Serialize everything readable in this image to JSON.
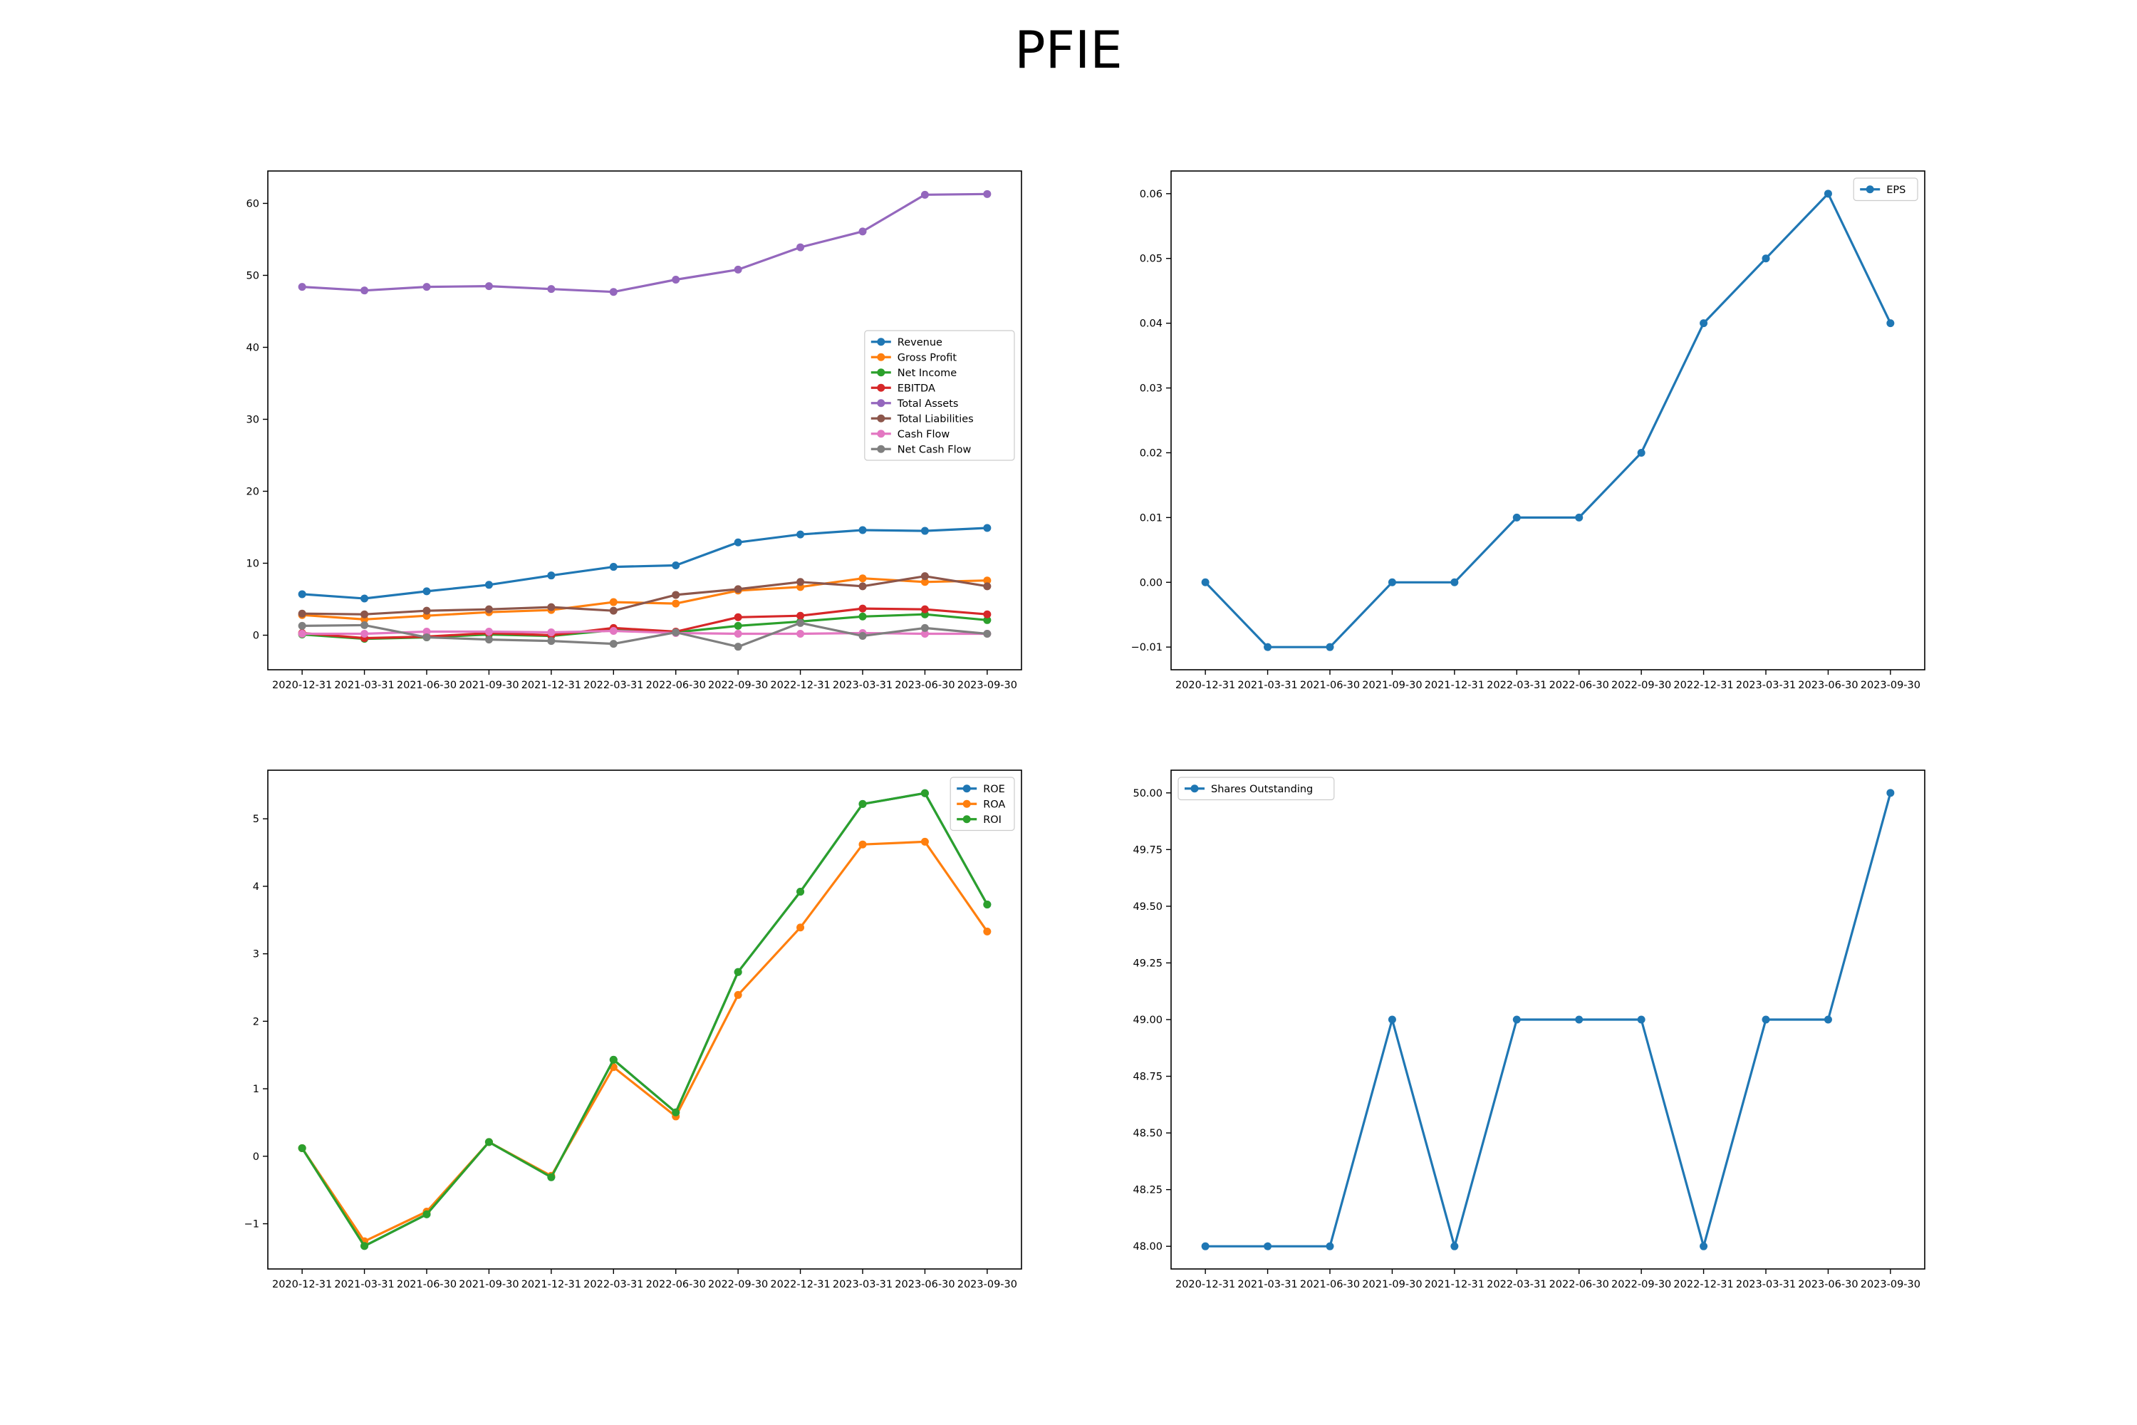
{
  "title": "PFIE",
  "colors": {
    "c0": "#1f77b4",
    "c1": "#ff7f0e",
    "c2": "#2ca02c",
    "c3": "#d62728",
    "c4": "#9467bd",
    "c5": "#8c564b",
    "c6": "#e377c2",
    "c7": "#7f7f7f"
  },
  "chart_data": [
    {
      "type": "line",
      "title": "",
      "xlabel": "",
      "ylabel": "",
      "x": [
        "2020-12-31",
        "2021-03-31",
        "2021-06-30",
        "2021-09-30",
        "2021-12-31",
        "2022-03-31",
        "2022-06-30",
        "2022-09-30",
        "2022-12-31",
        "2023-03-31",
        "2023-06-30",
        "2023-09-30"
      ],
      "ylim": [
        -4.8,
        64.5
      ],
      "yticks": [
        0,
        10,
        20,
        30,
        40,
        50,
        60
      ],
      "grid": false,
      "legend": "center-right",
      "series": [
        {
          "name": "Revenue",
          "color": "#1f77b4",
          "values": [
            5.7,
            5.1,
            6.1,
            7.0,
            8.3,
            9.5,
            9.7,
            12.9,
            14.0,
            14.6,
            14.5,
            14.9
          ]
        },
        {
          "name": "Gross Profit",
          "color": "#ff7f0e",
          "values": [
            2.8,
            2.2,
            2.7,
            3.2,
            3.5,
            4.6,
            4.4,
            6.2,
            6.7,
            7.9,
            7.4,
            7.6
          ]
        },
        {
          "name": "Net Income",
          "color": "#2ca02c",
          "values": [
            0.1,
            -0.5,
            -0.3,
            0.1,
            -0.1,
            0.7,
            0.4,
            1.3,
            1.9,
            2.6,
            2.9,
            2.1
          ]
        },
        {
          "name": "EBITDA",
          "color": "#d62728",
          "values": [
            0.3,
            -0.4,
            -0.2,
            0.3,
            0.0,
            1.0,
            0.5,
            2.5,
            2.7,
            3.7,
            3.6,
            2.9
          ]
        },
        {
          "name": "Total Assets",
          "color": "#9467bd",
          "values": [
            48.4,
            47.9,
            48.4,
            48.5,
            48.1,
            47.7,
            49.4,
            50.8,
            53.9,
            56.1,
            61.2,
            61.3
          ]
        },
        {
          "name": "Total Liabilities",
          "color": "#8c564b",
          "values": [
            3.0,
            2.9,
            3.4,
            3.6,
            3.9,
            3.4,
            5.6,
            6.4,
            7.4,
            6.8,
            8.2,
            6.8
          ]
        },
        {
          "name": "Cash Flow",
          "color": "#e377c2",
          "values": [
            0.2,
            0.2,
            0.5,
            0.5,
            0.4,
            0.6,
            0.3,
            0.2,
            0.2,
            0.3,
            0.2,
            0.2
          ]
        },
        {
          "name": "Net Cash Flow",
          "color": "#7f7f7f",
          "values": [
            1.3,
            1.4,
            -0.3,
            -0.6,
            -0.8,
            -1.2,
            0.4,
            -1.6,
            1.7,
            -0.1,
            1.0,
            0.2
          ]
        }
      ]
    },
    {
      "type": "line",
      "title": "",
      "xlabel": "",
      "ylabel": "",
      "x": [
        "2020-12-31",
        "2021-03-31",
        "2021-06-30",
        "2021-09-30",
        "2021-12-31",
        "2022-03-31",
        "2022-06-30",
        "2022-09-30",
        "2022-12-31",
        "2023-03-31",
        "2023-06-30",
        "2023-09-30"
      ],
      "ylim": [
        -0.0135,
        0.0635
      ],
      "yticks": [
        -0.01,
        0.0,
        0.01,
        0.02,
        0.03,
        0.04,
        0.05,
        0.06
      ],
      "ytick_labels": [
        "−0.01",
        "0.00",
        "0.01",
        "0.02",
        "0.03",
        "0.04",
        "0.05",
        "0.06"
      ],
      "grid": false,
      "legend": "top-right",
      "series": [
        {
          "name": "EPS",
          "color": "#1f77b4",
          "values": [
            0.0,
            -0.01,
            -0.01,
            0.0,
            0.0,
            0.01,
            0.01,
            0.02,
            0.04,
            0.05,
            0.06,
            0.04
          ]
        }
      ]
    },
    {
      "type": "line",
      "title": "",
      "xlabel": "",
      "ylabel": "",
      "x": [
        "2020-12-31",
        "2021-03-31",
        "2021-06-30",
        "2021-09-30",
        "2021-12-31",
        "2022-03-31",
        "2022-06-30",
        "2022-09-30",
        "2022-12-31",
        "2023-03-31",
        "2023-06-30",
        "2023-09-30"
      ],
      "ylim": [
        -1.67,
        5.72
      ],
      "yticks": [
        -1,
        0,
        1,
        2,
        3,
        4,
        5
      ],
      "ytick_labels": [
        "−1",
        "0",
        "1",
        "2",
        "3",
        "4",
        "5"
      ],
      "grid": false,
      "legend": "top-right",
      "series": [
        {
          "name": "ROE",
          "color": "#1f77b4",
          "values": [
            0.12,
            -1.33,
            -0.86,
            0.21,
            -0.31,
            1.43,
            0.65,
            2.73,
            3.92,
            5.22,
            5.38,
            3.73
          ]
        },
        {
          "name": "ROA",
          "color": "#ff7f0e",
          "values": [
            0.12,
            -1.26,
            -0.82,
            0.21,
            -0.29,
            1.32,
            0.59,
            2.39,
            3.39,
            4.62,
            4.66,
            3.33
          ]
        },
        {
          "name": "ROI",
          "color": "#2ca02c",
          "values": [
            0.12,
            -1.33,
            -0.86,
            0.21,
            -0.31,
            1.43,
            0.65,
            2.73,
            3.92,
            5.22,
            5.38,
            3.73
          ]
        }
      ]
    },
    {
      "type": "line",
      "title": "",
      "xlabel": "",
      "ylabel": "",
      "x": [
        "2020-12-31",
        "2021-03-31",
        "2021-06-30",
        "2021-09-30",
        "2021-12-31",
        "2022-03-31",
        "2022-06-30",
        "2022-09-30",
        "2022-12-31",
        "2023-03-31",
        "2023-06-30",
        "2023-09-30"
      ],
      "ylim": [
        47.9,
        50.1
      ],
      "yticks": [
        48.0,
        48.25,
        48.5,
        48.75,
        49.0,
        49.25,
        49.5,
        49.75,
        50.0
      ],
      "ytick_labels": [
        "48.00",
        "48.25",
        "48.50",
        "48.75",
        "49.00",
        "49.25",
        "49.50",
        "49.75",
        "50.00"
      ],
      "grid": false,
      "legend": "top-left",
      "series": [
        {
          "name": "Shares Outstanding",
          "color": "#1f77b4",
          "values": [
            48,
            48,
            48,
            49,
            48,
            49,
            49,
            49,
            48,
            49,
            49,
            50
          ]
        }
      ]
    }
  ]
}
